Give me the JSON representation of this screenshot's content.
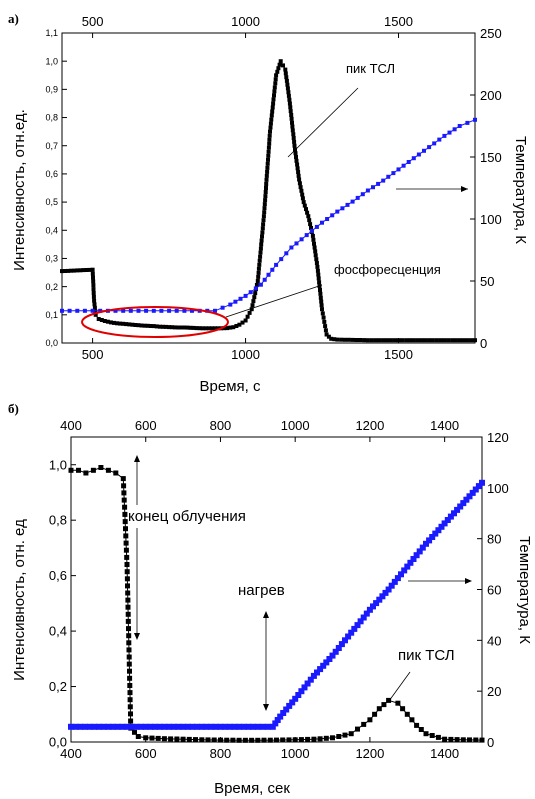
{
  "colors": {
    "intensity": "#000000",
    "temperature": "#1a1aff",
    "ellipse": "#e00000",
    "axis": "#000000"
  },
  "chart_data": [
    {
      "type": "scatter",
      "panel_label": "а)",
      "xlabel": "Время, с",
      "ylabel": "Интенсивность, отн.ед.",
      "y2label": "Температура, К",
      "xlim": [
        400,
        1750
      ],
      "ylim": [
        0,
        1.1
      ],
      "y2lim": [
        0,
        250
      ],
      "x_ticks": [
        500,
        1000,
        1500
      ],
      "x_tick_labels": [
        "500",
        "1000",
        "1500"
      ],
      "top_x_ticks": [
        500,
        1000,
        1500
      ],
      "top_x_tick_labels": [
        "500",
        "1000",
        "1500"
      ],
      "y_ticks": [
        0,
        0.1,
        0.2,
        0.3,
        0.4,
        0.5,
        0.6,
        0.7,
        0.8,
        0.9,
        1.0,
        1.1
      ],
      "y_tick_labels": [
        "0,0",
        "0,1",
        "0,2",
        "0,3",
        "0,4",
        "0,5",
        "0,6",
        "0,7",
        "0,8",
        "0,9",
        "1,0",
        "1,1"
      ],
      "y2_ticks": [
        0,
        50,
        100,
        150,
        200,
        250
      ],
      "y2_tick_labels": [
        "0",
        "50",
        "100",
        "150",
        "200",
        "250"
      ],
      "grid": false,
      "series": [
        {
          "axis": "left",
          "marker": "square",
          "points": [
            [
              400,
              0.255
            ],
            [
              420,
              0.256
            ],
            [
              440,
              0.257
            ],
            [
              460,
              0.258
            ],
            [
              480,
              0.259
            ],
            [
              500,
              0.26
            ],
            [
              505,
              0.15
            ],
            [
              510,
              0.1
            ],
            [
              520,
              0.085
            ],
            [
              540,
              0.078
            ],
            [
              560,
              0.073
            ],
            [
              580,
              0.07
            ],
            [
              600,
              0.068
            ],
            [
              620,
              0.066
            ],
            [
              640,
              0.064
            ],
            [
              660,
              0.062
            ],
            [
              680,
              0.061
            ],
            [
              700,
              0.06
            ],
            [
              720,
              0.058
            ],
            [
              740,
              0.057
            ],
            [
              760,
              0.056
            ],
            [
              780,
              0.055
            ],
            [
              800,
              0.055
            ],
            [
              820,
              0.054
            ],
            [
              840,
              0.053
            ],
            [
              860,
              0.052
            ],
            [
              880,
              0.052
            ],
            [
              900,
              0.052
            ],
            [
              920,
              0.052
            ],
            [
              940,
              0.053
            ],
            [
              960,
              0.056
            ],
            [
              980,
              0.065
            ],
            [
              1000,
              0.08
            ],
            [
              1020,
              0.12
            ],
            [
              1040,
              0.22
            ],
            [
              1060,
              0.45
            ],
            [
              1080,
              0.75
            ],
            [
              1100,
              0.95
            ],
            [
              1115,
              1.0
            ],
            [
              1130,
              0.97
            ],
            [
              1145,
              0.85
            ],
            [
              1160,
              0.7
            ],
            [
              1175,
              0.58
            ],
            [
              1190,
              0.5
            ],
            [
              1205,
              0.45
            ],
            [
              1220,
              0.38
            ],
            [
              1235,
              0.27
            ],
            [
              1250,
              0.12
            ],
            [
              1265,
              0.03
            ],
            [
              1280,
              0.015
            ],
            [
              1300,
              0.012
            ],
            [
              1350,
              0.011
            ],
            [
              1400,
              0.01
            ],
            [
              1450,
              0.01
            ],
            [
              1500,
              0.01
            ],
            [
              1550,
              0.01
            ],
            [
              1600,
              0.01
            ],
            [
              1650,
              0.01
            ],
            [
              1700,
              0.01
            ],
            [
              1750,
              0.01
            ]
          ]
        },
        {
          "axis": "right",
          "marker": "square",
          "points": [
            [
              400,
              26
            ],
            [
              500,
              26
            ],
            [
              600,
              26
            ],
            [
              700,
              26
            ],
            [
              800,
              26
            ],
            [
              900,
              26
            ],
            [
              950,
              31
            ],
            [
              1000,
              38
            ],
            [
              1050,
              47
            ],
            [
              1100,
              63
            ],
            [
              1150,
              77
            ],
            [
              1200,
              87
            ],
            [
              1250,
              97
            ],
            [
              1300,
              106
            ],
            [
              1350,
              114
            ],
            [
              1400,
              123
            ],
            [
              1450,
              131
            ],
            [
              1500,
              140
            ],
            [
              1550,
              149
            ],
            [
              1600,
              158
            ],
            [
              1650,
              167
            ],
            [
              1700,
              175
            ],
            [
              1750,
              180
            ]
          ]
        }
      ],
      "annotations": [
        "пик ТСЛ",
        "фосфоресценция"
      ]
    },
    {
      "type": "scatter",
      "panel_label": "б)",
      "xlabel": "Время, сек",
      "ylabel": "Интенсивность, отн. ед",
      "y2label": "Температура, К",
      "xlim": [
        400,
        1500
      ],
      "ylim": [
        0,
        1.1
      ],
      "y2lim": [
        0,
        120
      ],
      "x_ticks": [
        400,
        600,
        800,
        1000,
        1200,
        1400
      ],
      "x_tick_labels": [
        "400",
        "600",
        "800",
        "1000",
        "1200",
        "1400"
      ],
      "top_x_ticks": [
        400,
        600,
        800,
        1000,
        1200,
        1400
      ],
      "top_x_tick_labels": [
        "400",
        "600",
        "800",
        "1000",
        "1200",
        "1400"
      ],
      "y_ticks": [
        0,
        0.2,
        0.4,
        0.6,
        0.8,
        1.0
      ],
      "y_tick_labels": [
        "0,0",
        "0,2",
        "0,4",
        "0,6",
        "0,8",
        "1,0"
      ],
      "y2_ticks": [
        0,
        20,
        40,
        60,
        80,
        100,
        120
      ],
      "y2_tick_labels": [
        "0",
        "20",
        "40",
        "60",
        "80",
        "100",
        "120"
      ],
      "grid": false,
      "series": [
        {
          "axis": "left",
          "marker": "square",
          "points": [
            [
              400,
              0.98
            ],
            [
              420,
              0.98
            ],
            [
              440,
              0.97
            ],
            [
              460,
              0.98
            ],
            [
              480,
              0.99
            ],
            [
              500,
              0.98
            ],
            [
              520,
              0.97
            ],
            [
              540,
              0.95
            ],
            [
              550,
              0.64
            ],
            [
              560,
              0.05
            ],
            [
              580,
              0.02
            ],
            [
              600,
              0.015
            ],
            [
              650,
              0.012
            ],
            [
              700,
              0.01
            ],
            [
              750,
              0.008
            ],
            [
              800,
              0.007
            ],
            [
              850,
              0.006
            ],
            [
              900,
              0.006
            ],
            [
              950,
              0.007
            ],
            [
              1000,
              0.008
            ],
            [
              1050,
              0.01
            ],
            [
              1100,
              0.015
            ],
            [
              1150,
              0.03
            ],
            [
              1200,
              0.08
            ],
            [
              1225,
              0.12
            ],
            [
              1250,
              0.15
            ],
            [
              1275,
              0.14
            ],
            [
              1300,
              0.1
            ],
            [
              1325,
              0.06
            ],
            [
              1350,
              0.03
            ],
            [
              1400,
              0.01
            ],
            [
              1450,
              0.008
            ],
            [
              1500,
              0.007
            ]
          ]
        },
        {
          "axis": "right",
          "marker": "square",
          "points": [
            [
              400,
              6
            ],
            [
              450,
              6
            ],
            [
              500,
              6
            ],
            [
              550,
              6
            ],
            [
              600,
              6
            ],
            [
              650,
              6
            ],
            [
              700,
              6
            ],
            [
              750,
              6
            ],
            [
              800,
              6
            ],
            [
              850,
              6
            ],
            [
              900,
              6
            ],
            [
              940,
              6
            ],
            [
              960,
              10
            ],
            [
              1000,
              17
            ],
            [
              1050,
              26
            ],
            [
              1100,
              34
            ],
            [
              1150,
              43
            ],
            [
              1200,
              52
            ],
            [
              1250,
              60
            ],
            [
              1300,
              69
            ],
            [
              1350,
              78
            ],
            [
              1400,
              86
            ],
            [
              1450,
              94
            ],
            [
              1500,
              102
            ]
          ]
        }
      ],
      "annotations": [
        "конец облучения",
        "нагрев",
        "пик ТСЛ"
      ]
    }
  ]
}
